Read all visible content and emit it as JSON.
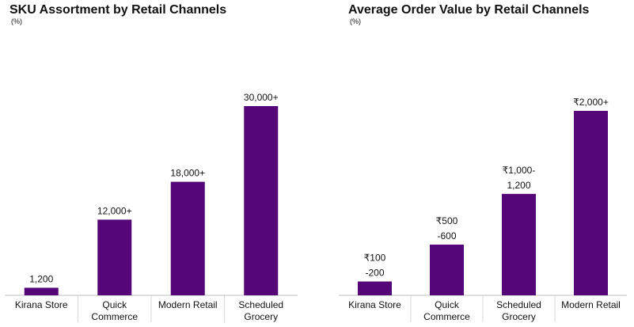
{
  "chart_data": [
    {
      "type": "bar",
      "title": "SKU Assortment by Retail Channels",
      "subtitle": "(%)",
      "categories": [
        [
          "Kirana Store"
        ],
        [
          "Quick",
          "Commerce"
        ],
        [
          "Modern Retail"
        ],
        [
          "Scheduled",
          "Grocery"
        ]
      ],
      "values": [
        1200,
        12000,
        18000,
        30000
      ],
      "data_labels": [
        [
          "1,200"
        ],
        [
          "12,000+"
        ],
        [
          "18,000+"
        ],
        [
          "30,000+"
        ]
      ],
      "ylim": [
        0,
        30000
      ],
      "grid": false,
      "legend": "none",
      "bar_color": "#560777"
    },
    {
      "type": "bar",
      "title": "Average Order Value by Retail Channels",
      "subtitle": "(%)",
      "categories": [
        [
          "Kirana Store"
        ],
        [
          "Quick",
          "Commerce"
        ],
        [
          "Scheduled",
          "Grocery"
        ],
        [
          "Modern Retail"
        ]
      ],
      "values": [
        150,
        550,
        1100,
        2000
      ],
      "data_labels": [
        [
          "₹100",
          "-200"
        ],
        [
          "₹500",
          "-600"
        ],
        [
          "₹1,000-",
          "1,200"
        ],
        [
          "₹2,000+"
        ]
      ],
      "ylim": [
        0,
        2000
      ],
      "grid": false,
      "legend": "none",
      "bar_color": "#560777"
    }
  ]
}
